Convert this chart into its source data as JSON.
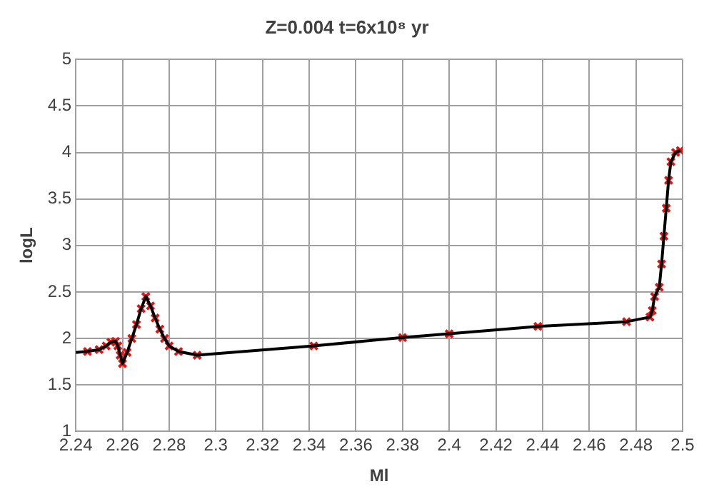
{
  "chart_data": {
    "type": "line",
    "title": "Z=0.004 t=6x10⁸ yr",
    "xlabel": "Ml",
    "ylabel": "logL",
    "xlim": [
      2.24,
      2.5
    ],
    "xticks": [
      2.24,
      2.26,
      2.28,
      2.3,
      2.32,
      2.34,
      2.36,
      2.38,
      2.4,
      2.42,
      2.44,
      2.46,
      2.48,
      2.5
    ],
    "ylim": [
      1,
      5
    ],
    "yticks": [
      1,
      1.5,
      2,
      2.5,
      3,
      3.5,
      4,
      4.5,
      5
    ],
    "grid": true,
    "legend": false,
    "marker": "cross",
    "series": [
      {
        "type": "line",
        "marker": "none",
        "color": "#000000",
        "x": [
          2.24,
          2.245,
          2.25,
          2.253,
          2.255,
          2.257,
          2.258,
          2.259,
          2.26,
          2.262,
          2.264,
          2.266,
          2.268,
          2.27,
          2.272,
          2.274,
          2.276,
          2.278,
          2.28,
          2.284,
          2.292,
          2.342,
          2.38,
          2.4,
          2.438,
          2.476,
          2.486,
          2.487,
          2.488,
          2.49,
          2.491,
          2.492,
          2.493,
          2.494,
          2.495,
          2.497,
          2.499
        ],
        "values": [
          1.85,
          1.86,
          1.88,
          1.92,
          1.96,
          1.97,
          1.92,
          1.82,
          1.73,
          1.85,
          2.0,
          2.15,
          2.32,
          2.45,
          2.35,
          2.22,
          2.1,
          2.0,
          1.92,
          1.86,
          1.82,
          1.92,
          2.01,
          2.05,
          2.13,
          2.18,
          2.23,
          2.3,
          2.45,
          2.55,
          2.8,
          3.1,
          3.4,
          3.7,
          3.9,
          4.0,
          4.02
        ]
      },
      {
        "type": "scatter",
        "color": "#e81010",
        "x": [
          2.245,
          2.25,
          2.253,
          2.255,
          2.257,
          2.258,
          2.259,
          2.26,
          2.262,
          2.264,
          2.266,
          2.268,
          2.27,
          2.272,
          2.274,
          2.276,
          2.278,
          2.28,
          2.284,
          2.292,
          2.342,
          2.38,
          2.4,
          2.438,
          2.476,
          2.486,
          2.487,
          2.488,
          2.49,
          2.491,
          2.492,
          2.493,
          2.494,
          2.495,
          2.497,
          2.499
        ],
        "values": [
          1.86,
          1.88,
          1.92,
          1.96,
          1.97,
          1.92,
          1.82,
          1.73,
          1.85,
          2.0,
          2.15,
          2.32,
          2.45,
          2.35,
          2.22,
          2.1,
          2.0,
          1.92,
          1.86,
          1.82,
          1.92,
          2.01,
          2.05,
          2.13,
          2.18,
          2.23,
          2.3,
          2.45,
          2.55,
          2.8,
          3.1,
          3.4,
          3.7,
          3.9,
          4.0,
          4.02
        ]
      }
    ]
  }
}
